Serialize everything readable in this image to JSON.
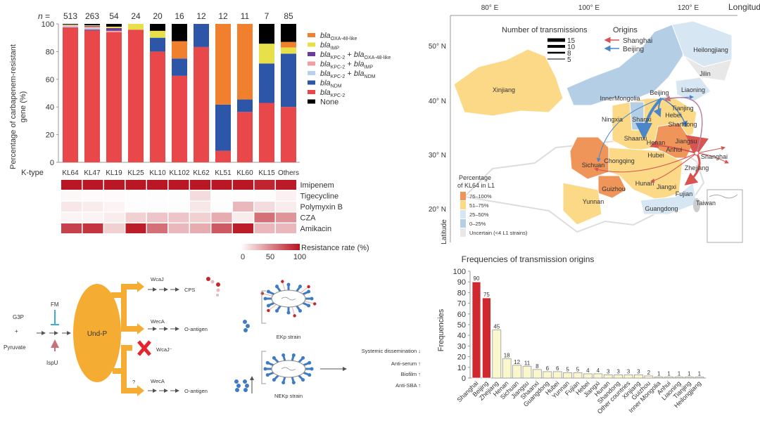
{
  "chart_data": [
    {
      "id": "carbapenem-stacked",
      "type": "bar",
      "stacked": true,
      "ylabel": "Percentage of carbapenem-resistant gene (%)",
      "ylabel_lines": [
        "Percentage of carbapenem-resistant",
        "gene (%)"
      ],
      "xlabel": "K-type",
      "n_prefix": "n =",
      "ylim": [
        0,
        100
      ],
      "yticks": [
        0,
        20,
        40,
        60,
        80,
        100
      ],
      "categories": [
        "KL64",
        "KL47",
        "KL19",
        "KL25",
        "KL10",
        "KL102",
        "KL62",
        "KL51",
        "KL60",
        "KL15",
        "Others"
      ],
      "n": [
        513,
        263,
        54,
        24,
        20,
        16,
        12,
        12,
        11,
        7,
        85
      ],
      "series": [
        {
          "name": "blaKPC-2",
          "base": "bla",
          "sub": "KPC-2",
          "color": "#e8484a",
          "values": [
            97.5,
            95.5,
            94,
            95.8,
            80,
            62.5,
            83.3,
            8.3,
            36.4,
            42.9,
            40
          ]
        },
        {
          "name": "blaNDM",
          "base": "bla",
          "sub": "NDM",
          "color": "#2d56a8",
          "values": [
            0,
            0.5,
            0,
            0,
            10,
            12.5,
            16.7,
            33.4,
            9,
            28.5,
            38.5
          ]
        },
        {
          "name": "blaKPC-2 + blaNDM",
          "base": "bla",
          "sub": "KPC-2",
          "base2": "bla",
          "sub2": "NDM",
          "color": "#b8d0ec",
          "values": [
            1,
            1,
            0,
            0,
            0,
            0,
            0,
            0,
            0,
            0,
            0
          ]
        },
        {
          "name": "blaKPC-2 + blaIMP",
          "base": "bla",
          "sub": "KPC-2",
          "base2": "bla",
          "sub2": "IMP",
          "color": "#f0a0a0",
          "values": [
            0.5,
            1,
            1,
            0,
            0,
            0,
            0,
            0,
            0,
            0,
            0
          ]
        },
        {
          "name": "blaKPC-2 + blaOXA-48-like",
          "base": "bla",
          "sub": "KPC-2",
          "base2": "bla",
          "sub2": "OXA-48-like",
          "color": "#6a3d9a",
          "values": [
            0,
            0.5,
            2,
            0,
            0,
            0,
            0,
            0,
            0,
            0,
            0
          ]
        },
        {
          "name": "blaIMP",
          "base": "bla",
          "sub": "IMP",
          "color": "#e8e04a",
          "values": [
            0.5,
            0.5,
            1,
            4.2,
            5,
            0,
            0,
            0,
            0,
            14.3,
            4.5
          ]
        },
        {
          "name": "blaOXA-48-like",
          "base": "bla",
          "sub": "OXA-48-like",
          "color": "#f07f2e",
          "values": [
            0,
            0,
            0,
            0,
            0,
            12.5,
            0,
            58.3,
            54.6,
            0,
            4
          ]
        },
        {
          "name": "None",
          "base": "None",
          "sub": "",
          "color": "#000000",
          "values": [
            0.5,
            1,
            2,
            0,
            5,
            12.5,
            0,
            0,
            0,
            14.3,
            13
          ]
        }
      ],
      "legend_order": [
        "blaOXA-48-like",
        "blaIMP",
        "blaKPC-2 + blaOXA-48-like",
        "blaKPC-2 + blaIMP",
        "blaKPC-2 + blaNDM",
        "blaNDM",
        "blaKPC-2",
        "None"
      ],
      "legend": "right"
    },
    {
      "id": "resistance-heatmap",
      "type": "heatmap",
      "columns": [
        "KL64",
        "KL47",
        "KL19",
        "KL25",
        "KL10",
        "KL102",
        "KL62",
        "KL51",
        "KL60",
        "KL15",
        "Others"
      ],
      "rows": [
        "Imipenem",
        "Tigecycline",
        "Polymyxin B",
        "CZA",
        "Amikacin"
      ],
      "values": [
        [
          98,
          98,
          98,
          98,
          98,
          98,
          98,
          98,
          98,
          92,
          96
        ],
        [
          3,
          2,
          2,
          1,
          1,
          1,
          15,
          1,
          1,
          1,
          6
        ],
        [
          10,
          8,
          5,
          1,
          1,
          1,
          10,
          1,
          30,
          15,
          8
        ],
        [
          5,
          5,
          8,
          20,
          25,
          25,
          20,
          35,
          8,
          60,
          45
        ],
        [
          80,
          85,
          20,
          95,
          60,
          30,
          35,
          70,
          95,
          30,
          30
        ]
      ],
      "colorbar": {
        "label": "Resistance rate (%)",
        "ticks": [
          0,
          50,
          100
        ],
        "low": "#ffffff",
        "high": "#b8121e"
      }
    },
    {
      "id": "transmission-origins",
      "type": "bar",
      "title": "Frequencies of transmission origins",
      "ylabel": "Frequencies",
      "xlabel": "",
      "ylim": [
        0,
        100
      ],
      "yticks": [
        0,
        10,
        20,
        30,
        40,
        50,
        60,
        70,
        80,
        90,
        100
      ],
      "categories": [
        "Shanghai",
        "Beijing",
        "Zhejiang",
        "Henan",
        "Sichuan",
        "Jiangsu",
        "Shaanxi",
        "Guangdong",
        "Hubei",
        "Yunnan",
        "Fujian",
        "Hebei",
        "Jiangxi",
        "Hunan",
        "Shandong",
        "Other countries",
        "Xinjiang",
        "Guizhou",
        "Inner Mongolia",
        "Anhui",
        "Liaoning",
        "Tianjing",
        "Heilongjiang"
      ],
      "values": [
        90,
        75,
        45,
        18,
        12,
        11,
        8,
        6,
        6,
        5,
        5,
        4,
        4,
        3,
        3,
        3,
        3,
        2,
        1,
        1,
        1,
        1,
        1
      ],
      "highlight": [
        "Shanghai",
        "Beijing"
      ],
      "highlight_color": "#d0282e",
      "bar_color": "#fbf7cc"
    }
  ],
  "map": {
    "xlabel": "Longitude",
    "ylabel": "Latitude",
    "lon_ticks": [
      "80° E",
      "100° E",
      "120° E"
    ],
    "lat_ticks": [
      "50° N",
      "40° N",
      "30° N",
      "20° N"
    ],
    "transmissions_title": "Number of transmissions",
    "transmission_levels": [
      "15",
      "10",
      "8",
      "5"
    ],
    "origins_title": "Origins",
    "origins": [
      {
        "label": "Shanghai",
        "color": "#d9534f"
      },
      {
        "label": "Beijing",
        "color": "#4a86c8"
      }
    ],
    "legend_title_lines": [
      "Percentage",
      "of KL64 in L1"
    ],
    "legend": [
      {
        "label": "76–100%",
        "color": "#f0955a"
      },
      {
        "label": "51–75%",
        "color": "#fbd987"
      },
      {
        "label": "25–50%",
        "color": "#d6e6f2"
      },
      {
        "label": "0–25%",
        "color": "#b4cfe5"
      },
      {
        "label": "Uncertain (<4 L1 strains)",
        "color": "#e8e8e8"
      }
    ],
    "regions": [
      "Xinjiang",
      "Heilongjiang",
      "Jilin",
      "Liaoning",
      "Beijing",
      "InnerMongolia",
      "Tianjing",
      "Hebei",
      "Ningxia",
      "Shanxi",
      "Shandong",
      "Shaanxi",
      "Henan",
      "Jiangsu",
      "Anhui",
      "Hubei",
      "Shanghai",
      "Sichuan",
      "Chongqing",
      "Zhejiang",
      "Hunan",
      "Jiangxi",
      "Guizhou",
      "Fujian",
      "Yunnan",
      "Guangdong",
      "Taiwan"
    ]
  },
  "pathway": {
    "g3p": "G3P",
    "plus": "+",
    "pyruvate": "Pyruvate",
    "fm": "FM",
    "ispu": "IspU",
    "undp": "Und-P",
    "wcaj": "WcaJ",
    "wcaj_minus": "WcaJ⁻",
    "weca1": "WecA",
    "weca2": "WecA",
    "cps": "CPS",
    "oantigen1": "O-antigen",
    "oantigen2": "O-antigen",
    "question": "?",
    "ekp": "EKp strain",
    "nekp": "NEKp strain",
    "outcomes": [
      {
        "label": "Systemic dissemination",
        "dir": "↓"
      },
      {
        "label": "Anti-serum",
        "dir": "↑"
      },
      {
        "label": "Biofilm",
        "dir": "↑"
      },
      {
        "label": "Anti-SBA",
        "dir": "↑"
      }
    ]
  }
}
